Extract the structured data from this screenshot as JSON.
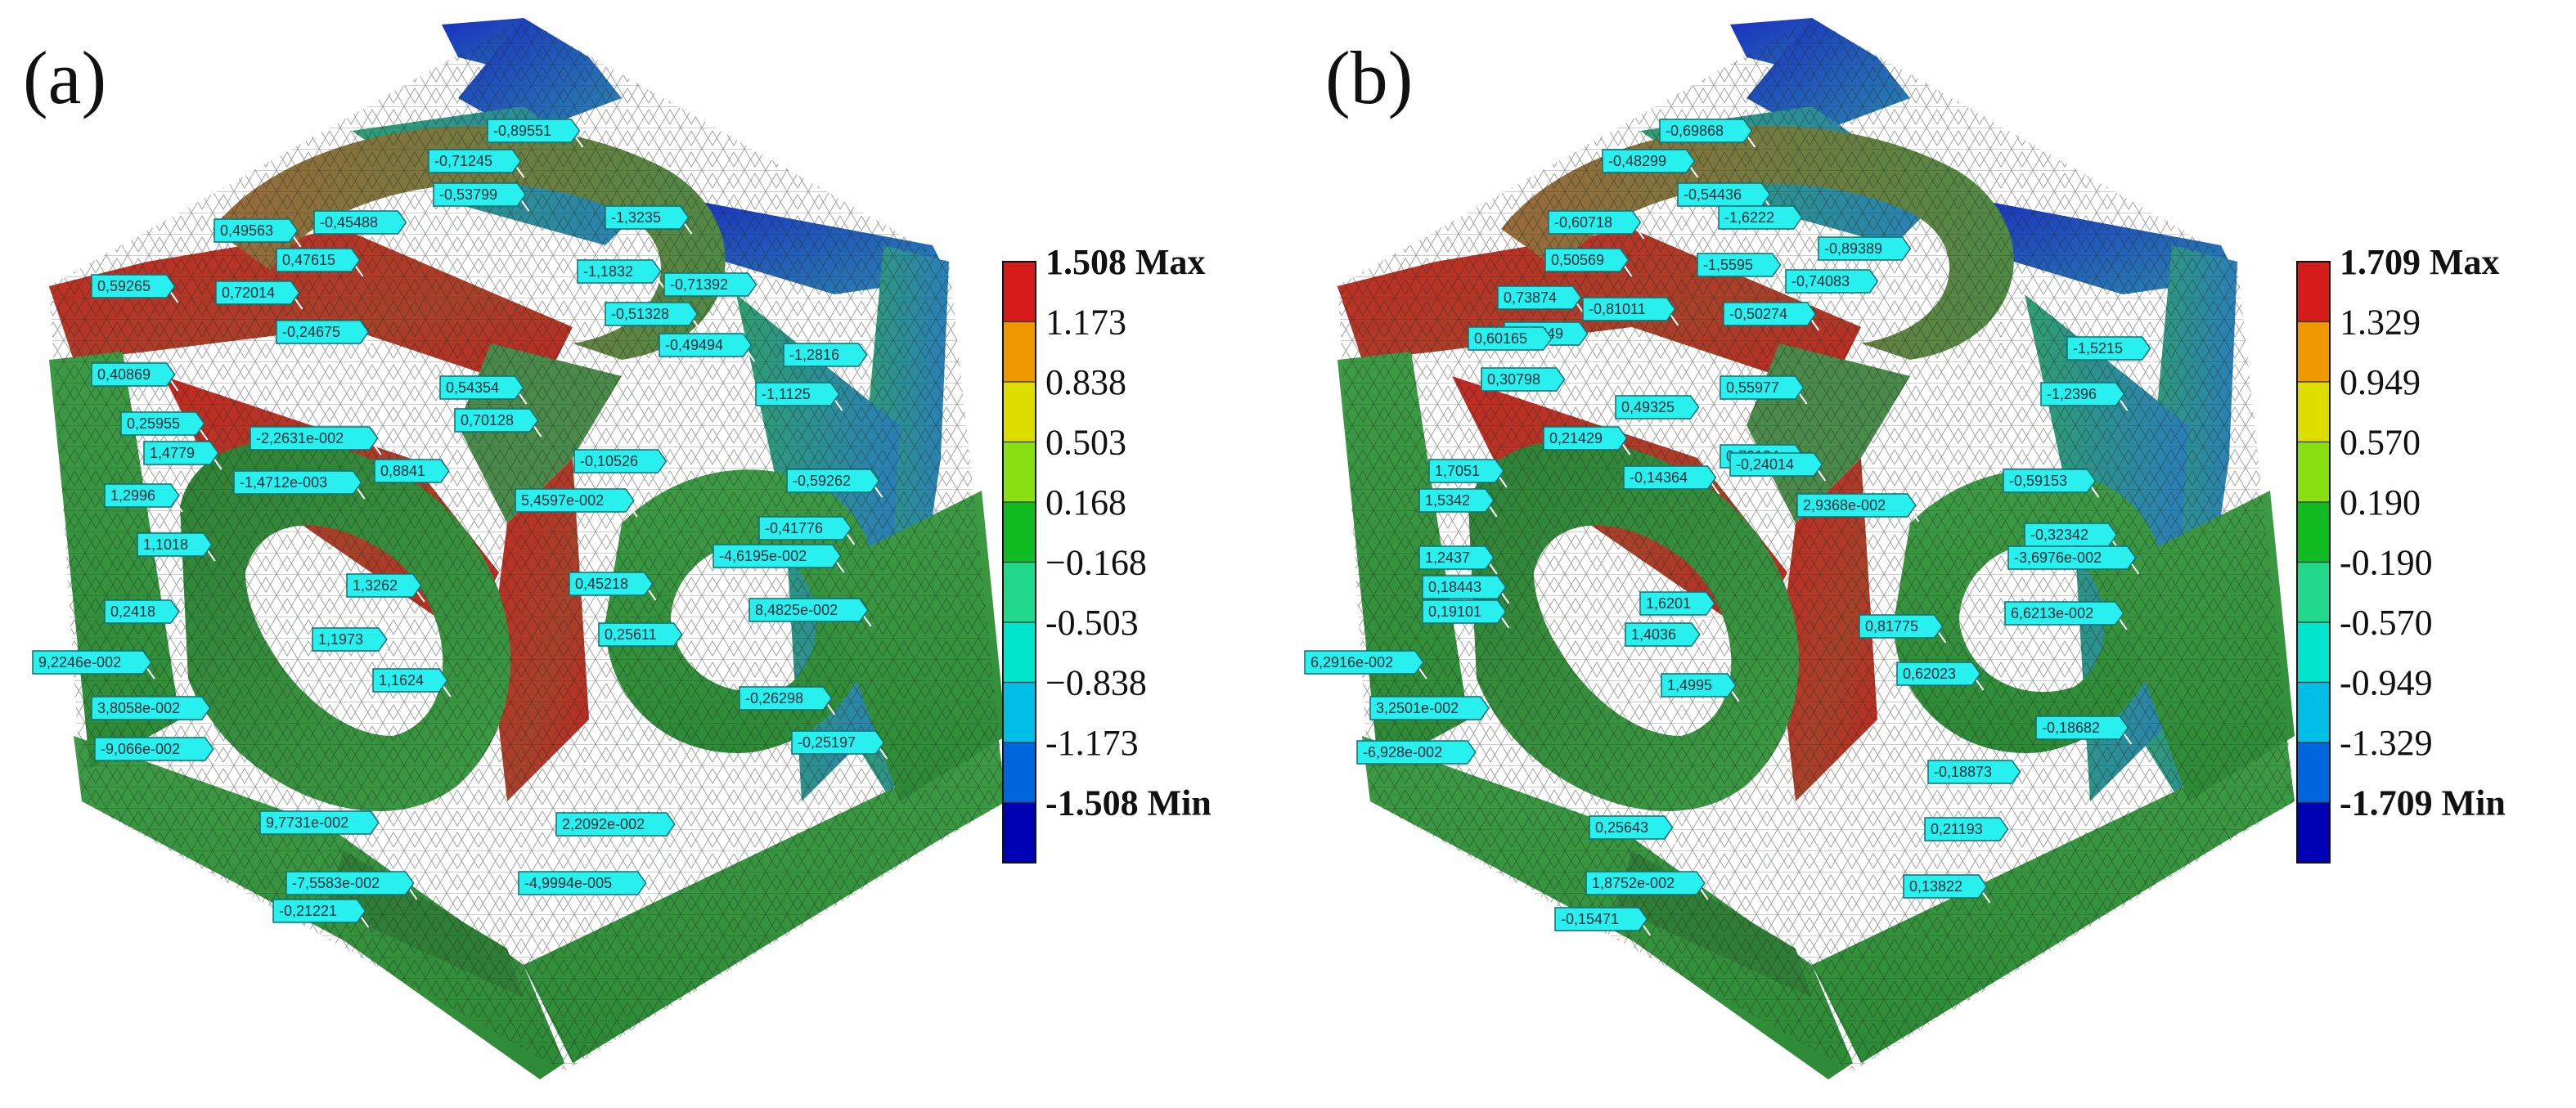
{
  "colors": {
    "scale": [
      "#0000b4",
      "#0066dd",
      "#00bfe6",
      "#00e5cc",
      "#22d88a",
      "#11bb22",
      "#88e011",
      "#dddd00",
      "#ee9900",
      "#d61b1b"
    ],
    "tag_fill": "#28f0ef",
    "mesh": "#2a3a2a"
  },
  "panels": [
    {
      "label": "(a)",
      "legend": {
        "max_label": "1.508 Max",
        "min_label": "-1.508 Min",
        "values": [
          "1.173",
          "0.838",
          "0.503",
          "0.168",
          "−0.168",
          "-0.503",
          "−0.838",
          "-1.173"
        ]
      },
      "tags": [
        "-0,89551",
        "-0,71245",
        "-0,53799",
        "-1,3235",
        "0,49563",
        "-0,45488",
        "0,47615",
        "-1,1832",
        "-0,71392",
        "0,72014",
        "-0,51328",
        "-0,24675",
        "-0,49494",
        "0,59265",
        "-1,2816",
        "0,40869",
        "-1,1125",
        "0,54354",
        "0,25955",
        "-2,2631e-002",
        "0,70128",
        "1,4779",
        "-0,10526",
        "-1,4712e-003",
        "0,8841",
        "-0,59262",
        "1,2996",
        "5,4597e-002",
        "-0,41776",
        "1,1018",
        "-4,6195e-002",
        "1,3262",
        "0,45218",
        "0,2418",
        "8,4825e-002",
        "1,1973",
        "0,25611",
        "9,2246e-002",
        "1,1624",
        "3,8058e-002",
        "-0,26298",
        "-0,25197",
        "-9,066e-002",
        "9,7731e-002",
        "2,2092e-002",
        "-7,5583e-002",
        "-4,9994e-005",
        "-0,21221"
      ]
    },
    {
      "label": "(b)",
      "legend": {
        "max_label": "1.709 Max",
        "min_label": "-1.709 Min",
        "values": [
          "1.329",
          "0.949",
          "0.570",
          "0.190",
          "-0.190",
          "-0.570",
          "-0.949",
          "-1.329"
        ]
      },
      "tags": [
        "-0,69868",
        "-0,48299",
        "-0,54436",
        "-1,6222",
        "-0,60718",
        "-0,89389",
        "0,50569",
        "-1,5595",
        "-0,74083",
        "0,73874",
        "-0,81011",
        "-0,50274",
        "0,90749",
        "0,60165",
        "-1,5215",
        "0,30798",
        "-1,2396",
        "0,55977",
        "0,49325",
        "0,21429",
        "0,70124",
        "1,7051",
        "-0,14364",
        "-0,24014",
        "1,5342",
        "-0,59153",
        "2,9368e-002",
        "-0,32342",
        "1,2437",
        "-3,6976e-002",
        "0,18443",
        "1,6201",
        "0,19101",
        "6,6213e-002",
        "1,4036",
        "0,81775",
        "6,2916e-002",
        "0,62023",
        "1,4995",
        "3,2501e-002",
        "-0,18682",
        "-6,928e-002",
        "-0,18873",
        "0,25643",
        "0,21193",
        "1,8752e-002",
        "0,13822",
        "-0,15471"
      ]
    }
  ]
}
